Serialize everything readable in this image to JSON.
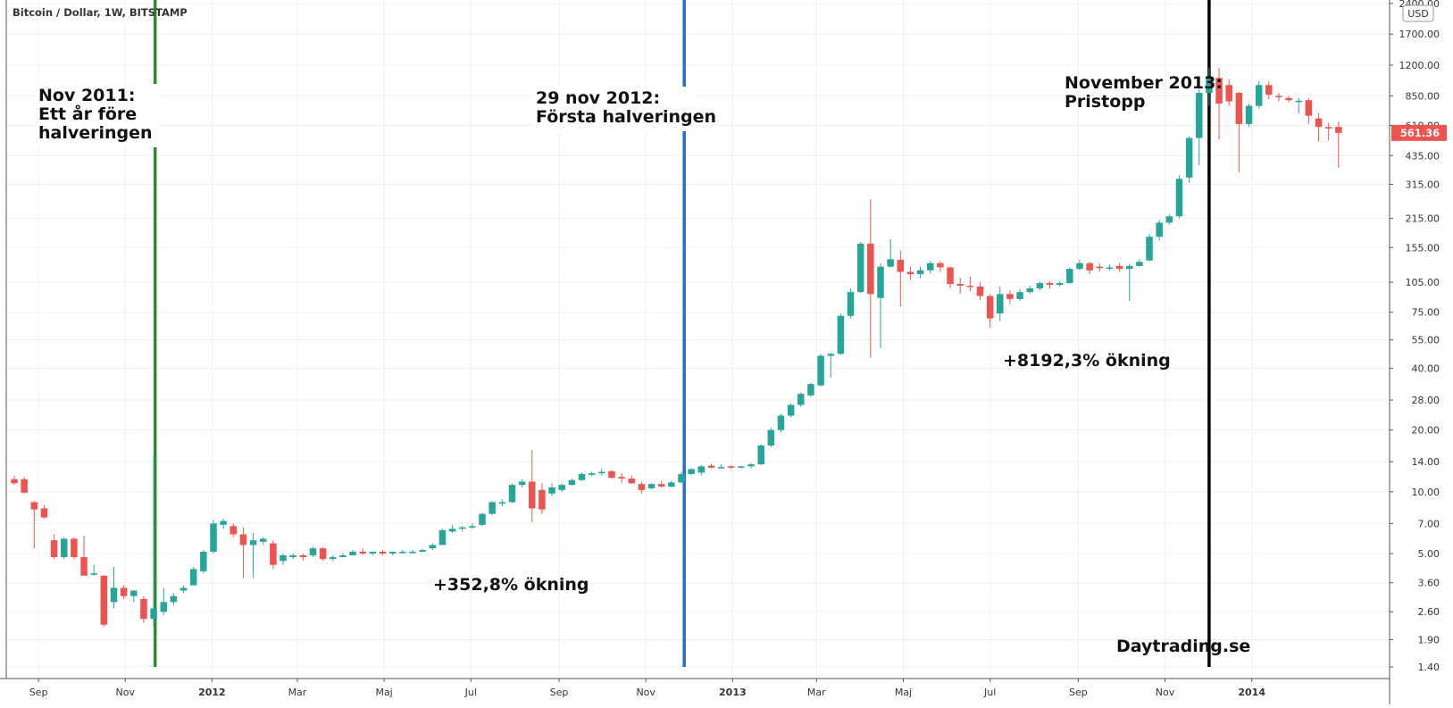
{
  "chart_data": {
    "type": "candlestick",
    "title": "Bitcoin / Dollar, 1W, BITSTAMP",
    "currency": "USD",
    "y_scale": "log",
    "ylim": [
      1.35,
      2400
    ],
    "xlim": [
      "2011-08-15",
      "2014-03-20"
    ],
    "grid": true,
    "y_ticks": [
      "2400.00",
      "1700.00",
      "1200.00",
      "850.00",
      "610.00",
      "435.00",
      "315.00",
      "215.00",
      "155.00",
      "105.00",
      "75.00",
      "55.00",
      "40.00",
      "28.00",
      "20.00",
      "14.00",
      "10.00",
      "7.00",
      "5.00",
      "3.60",
      "2.60",
      "1.90",
      "1.40"
    ],
    "x_ticks": [
      {
        "label": "Sep",
        "date": "2011-09-01",
        "bold": false
      },
      {
        "label": "Nov",
        "date": "2011-11-01",
        "bold": false
      },
      {
        "label": "2012",
        "date": "2012-01-01",
        "bold": true
      },
      {
        "label": "Mar",
        "date": "2012-03-01",
        "bold": false
      },
      {
        "label": "Maj",
        "date": "2012-05-01",
        "bold": false
      },
      {
        "label": "Jul",
        "date": "2012-07-01",
        "bold": false
      },
      {
        "label": "Sep",
        "date": "2012-09-01",
        "bold": false
      },
      {
        "label": "Nov",
        "date": "2012-11-01",
        "bold": false
      },
      {
        "label": "2013",
        "date": "2013-01-01",
        "bold": true
      },
      {
        "label": "Mar",
        "date": "2013-03-01",
        "bold": false
      },
      {
        "label": "Maj",
        "date": "2013-05-01",
        "bold": false
      },
      {
        "label": "Jul",
        "date": "2013-07-01",
        "bold": false
      },
      {
        "label": "Sep",
        "date": "2013-09-01",
        "bold": false
      },
      {
        "label": "Nov",
        "date": "2013-11-01",
        "bold": false
      },
      {
        "label": "2014",
        "date": "2014-01-01",
        "bold": true
      }
    ],
    "last_price": "561.36",
    "colors": {
      "up": "#26a69a",
      "down": "#ef5350",
      "grid": "#eef0f4",
      "price_label": "#ef5350"
    },
    "vertical_lines": [
      {
        "date": "2011-11-22",
        "color": "#2e8b2e"
      },
      {
        "date": "2012-11-28",
        "color": "#1e6fd0"
      },
      {
        "date": "2013-12-02",
        "color": "#000000"
      }
    ],
    "annotations": [
      {
        "lines": [
          "Nov 2011:",
          "Ett år före",
          "halveringen"
        ]
      },
      {
        "lines": [
          "29 nov 2012:",
          "Första halveringen"
        ]
      },
      {
        "lines": [
          "November 2013:",
          "Pristopp"
        ]
      },
      {
        "lines": [
          "+352,8% ökning"
        ]
      },
      {
        "lines": [
          "+8192,3% ökning"
        ]
      },
      {
        "lines": [
          "Daytrading.se"
        ]
      }
    ],
    "candles": [
      {
        "date": "2011-08-15",
        "o": 11.5,
        "h": 12.0,
        "l": 10.8,
        "c": 11.0
      },
      {
        "date": "2011-08-22",
        "o": 11.5,
        "h": 11.8,
        "l": 9.8,
        "c": 9.9
      },
      {
        "date": "2011-08-29",
        "o": 8.9,
        "h": 9.0,
        "l": 5.3,
        "c": 8.2
      },
      {
        "date": "2011-09-05",
        "o": 8.3,
        "h": 8.6,
        "l": 7.4,
        "c": 7.5
      },
      {
        "date": "2011-09-12",
        "o": 5.8,
        "h": 6.2,
        "l": 4.7,
        "c": 4.8
      },
      {
        "date": "2011-09-19",
        "o": 4.8,
        "h": 6.0,
        "l": 4.7,
        "c": 5.9
      },
      {
        "date": "2011-09-26",
        "o": 5.9,
        "h": 6.0,
        "l": 4.7,
        "c": 4.8
      },
      {
        "date": "2011-10-03",
        "o": 4.8,
        "h": 6.1,
        "l": 3.9,
        "c": 3.9
      },
      {
        "date": "2011-10-10",
        "o": 4.0,
        "h": 4.4,
        "l": 3.9,
        "c": 4.0
      },
      {
        "date": "2011-10-17",
        "o": 3.9,
        "h": 3.9,
        "l": 2.2,
        "c": 2.25
      },
      {
        "date": "2011-10-24",
        "o": 2.9,
        "h": 4.3,
        "l": 2.7,
        "c": 3.4
      },
      {
        "date": "2011-10-31",
        "o": 3.4,
        "h": 3.5,
        "l": 3.0,
        "c": 3.1
      },
      {
        "date": "2011-11-07",
        "o": 3.1,
        "h": 3.3,
        "l": 2.9,
        "c": 3.3
      },
      {
        "date": "2011-11-14",
        "o": 3.0,
        "h": 3.1,
        "l": 2.3,
        "c": 2.4
      },
      {
        "date": "2011-11-21",
        "o": 2.4,
        "h": 15.0,
        "l": 2.2,
        "c": 2.7
      },
      {
        "date": "2011-11-28",
        "o": 2.6,
        "h": 3.4,
        "l": 2.5,
        "c": 2.9
      },
      {
        "date": "2011-12-05",
        "o": 2.9,
        "h": 3.2,
        "l": 2.8,
        "c": 3.1
      },
      {
        "date": "2011-12-12",
        "o": 3.3,
        "h": 3.5,
        "l": 3.2,
        "c": 3.4
      },
      {
        "date": "2011-12-19",
        "o": 3.5,
        "h": 4.3,
        "l": 3.5,
        "c": 4.2
      },
      {
        "date": "2011-12-26",
        "o": 4.1,
        "h": 5.2,
        "l": 4.0,
        "c": 5.1
      },
      {
        "date": "2012-01-02",
        "o": 5.1,
        "h": 7.3,
        "l": 5.0,
        "c": 7.0
      },
      {
        "date": "2012-01-09",
        "o": 6.9,
        "h": 7.4,
        "l": 6.6,
        "c": 7.2
      },
      {
        "date": "2012-01-16",
        "o": 6.8,
        "h": 7.0,
        "l": 6.0,
        "c": 6.2
      },
      {
        "date": "2012-01-23",
        "o": 6.2,
        "h": 6.7,
        "l": 3.8,
        "c": 5.5
      },
      {
        "date": "2012-01-30",
        "o": 5.5,
        "h": 6.3,
        "l": 3.8,
        "c": 5.8
      },
      {
        "date": "2012-02-06",
        "o": 5.7,
        "h": 6.0,
        "l": 5.5,
        "c": 5.9
      },
      {
        "date": "2012-02-13",
        "o": 5.6,
        "h": 5.8,
        "l": 4.2,
        "c": 4.4
      },
      {
        "date": "2012-02-20",
        "o": 4.6,
        "h": 5.0,
        "l": 4.4,
        "c": 4.9
      },
      {
        "date": "2012-02-27",
        "o": 4.8,
        "h": 5.0,
        "l": 4.7,
        "c": 4.9
      },
      {
        "date": "2012-03-05",
        "o": 4.9,
        "h": 5.0,
        "l": 4.6,
        "c": 4.8
      },
      {
        "date": "2012-03-12",
        "o": 4.9,
        "h": 5.4,
        "l": 4.8,
        "c": 5.3
      },
      {
        "date": "2012-03-19",
        "o": 5.3,
        "h": 5.4,
        "l": 4.6,
        "c": 4.7
      },
      {
        "date": "2012-03-26",
        "o": 4.7,
        "h": 4.9,
        "l": 4.6,
        "c": 4.8
      },
      {
        "date": "2012-04-02",
        "o": 4.8,
        "h": 5.0,
        "l": 4.8,
        "c": 4.9
      },
      {
        "date": "2012-04-09",
        "o": 4.9,
        "h": 5.2,
        "l": 4.9,
        "c": 5.1
      },
      {
        "date": "2012-04-16",
        "o": 5.1,
        "h": 5.3,
        "l": 4.9,
        "c": 5.0
      },
      {
        "date": "2012-04-23",
        "o": 5.0,
        "h": 5.1,
        "l": 4.9,
        "c": 5.1
      },
      {
        "date": "2012-04-30",
        "o": 5.1,
        "h": 5.2,
        "l": 4.9,
        "c": 5.0
      },
      {
        "date": "2012-05-07",
        "o": 5.0,
        "h": 5.1,
        "l": 4.9,
        "c": 5.1
      },
      {
        "date": "2012-05-14",
        "o": 5.1,
        "h": 5.2,
        "l": 5.0,
        "c": 5.1
      },
      {
        "date": "2012-05-21",
        "o": 5.1,
        "h": 5.2,
        "l": 5.0,
        "c": 5.1
      },
      {
        "date": "2012-05-28",
        "o": 5.1,
        "h": 5.3,
        "l": 5.1,
        "c": 5.2
      },
      {
        "date": "2012-06-04",
        "o": 5.3,
        "h": 5.6,
        "l": 5.2,
        "c": 5.5
      },
      {
        "date": "2012-06-11",
        "o": 5.5,
        "h": 6.6,
        "l": 5.5,
        "c": 6.5
      },
      {
        "date": "2012-06-18",
        "o": 6.4,
        "h": 6.9,
        "l": 6.3,
        "c": 6.6
      },
      {
        "date": "2012-06-25",
        "o": 6.6,
        "h": 6.8,
        "l": 6.4,
        "c": 6.7
      },
      {
        "date": "2012-07-02",
        "o": 6.7,
        "h": 7.0,
        "l": 6.6,
        "c": 6.8
      },
      {
        "date": "2012-07-09",
        "o": 6.9,
        "h": 7.9,
        "l": 6.8,
        "c": 7.8
      },
      {
        "date": "2012-07-16",
        "o": 7.8,
        "h": 9.0,
        "l": 7.7,
        "c": 8.9
      },
      {
        "date": "2012-07-23",
        "o": 8.9,
        "h": 9.2,
        "l": 8.5,
        "c": 8.9
      },
      {
        "date": "2012-07-30",
        "o": 8.9,
        "h": 11.0,
        "l": 8.8,
        "c": 10.8
      },
      {
        "date": "2012-08-06",
        "o": 10.8,
        "h": 11.5,
        "l": 10.5,
        "c": 11.2
      },
      {
        "date": "2012-08-13",
        "o": 11.2,
        "h": 16.0,
        "l": 7.1,
        "c": 8.3
      },
      {
        "date": "2012-08-20",
        "o": 10.2,
        "h": 11.0,
        "l": 7.8,
        "c": 8.2
      },
      {
        "date": "2012-08-27",
        "o": 9.8,
        "h": 11.0,
        "l": 9.5,
        "c": 10.5
      },
      {
        "date": "2012-09-03",
        "o": 10.2,
        "h": 11.0,
        "l": 10.0,
        "c": 10.8
      },
      {
        "date": "2012-09-10",
        "o": 10.8,
        "h": 11.6,
        "l": 10.7,
        "c": 11.4
      },
      {
        "date": "2012-09-17",
        "o": 11.4,
        "h": 12.4,
        "l": 11.3,
        "c": 12.2
      },
      {
        "date": "2012-09-24",
        "o": 12.1,
        "h": 12.5,
        "l": 11.9,
        "c": 12.3
      },
      {
        "date": "2012-10-01",
        "o": 12.3,
        "h": 13.0,
        "l": 12.0,
        "c": 12.5
      },
      {
        "date": "2012-10-08",
        "o": 12.6,
        "h": 12.7,
        "l": 11.6,
        "c": 11.7
      },
      {
        "date": "2012-10-15",
        "o": 11.8,
        "h": 12.3,
        "l": 11.0,
        "c": 11.6
      },
      {
        "date": "2012-10-22",
        "o": 11.6,
        "h": 12.0,
        "l": 10.9,
        "c": 11.0
      },
      {
        "date": "2012-10-29",
        "o": 10.9,
        "h": 11.2,
        "l": 9.8,
        "c": 10.2
      },
      {
        "date": "2012-11-05",
        "o": 10.4,
        "h": 11.0,
        "l": 10.3,
        "c": 10.9
      },
      {
        "date": "2012-11-12",
        "o": 10.9,
        "h": 11.3,
        "l": 10.5,
        "c": 10.6
      },
      {
        "date": "2012-11-19",
        "o": 10.6,
        "h": 11.3,
        "l": 10.5,
        "c": 11.1
      },
      {
        "date": "2012-11-26",
        "o": 11.1,
        "h": 12.5,
        "l": 11.0,
        "c": 12.2
      },
      {
        "date": "2012-12-03",
        "o": 12.2,
        "h": 13.0,
        "l": 12.1,
        "c": 12.9
      },
      {
        "date": "2012-12-10",
        "o": 12.4,
        "h": 13.5,
        "l": 12.0,
        "c": 13.3
      },
      {
        "date": "2012-12-17",
        "o": 13.4,
        "h": 13.7,
        "l": 13.0,
        "c": 13.1
      },
      {
        "date": "2012-12-24",
        "o": 13.2,
        "h": 13.6,
        "l": 13.0,
        "c": 13.2
      },
      {
        "date": "2012-12-31",
        "o": 13.3,
        "h": 13.5,
        "l": 12.9,
        "c": 13.1
      },
      {
        "date": "2013-01-07",
        "o": 13.2,
        "h": 13.4,
        "l": 13.0,
        "c": 13.3
      },
      {
        "date": "2013-01-14",
        "o": 13.3,
        "h": 13.8,
        "l": 13.0,
        "c": 13.6
      },
      {
        "date": "2013-01-21",
        "o": 13.6,
        "h": 17.0,
        "l": 13.5,
        "c": 16.8
      },
      {
        "date": "2013-01-28",
        "o": 16.8,
        "h": 20.5,
        "l": 16.5,
        "c": 20.0
      },
      {
        "date": "2013-02-04",
        "o": 20.0,
        "h": 24.0,
        "l": 19.5,
        "c": 23.5
      },
      {
        "date": "2013-02-11",
        "o": 23.5,
        "h": 27.0,
        "l": 23.0,
        "c": 26.5
      },
      {
        "date": "2013-02-18",
        "o": 26.5,
        "h": 30.5,
        "l": 26.0,
        "c": 30.0
      },
      {
        "date": "2013-02-25",
        "o": 29.5,
        "h": 34.0,
        "l": 29.0,
        "c": 33.5
      },
      {
        "date": "2013-03-04",
        "o": 33.0,
        "h": 47.0,
        "l": 32.5,
        "c": 46.0
      },
      {
        "date": "2013-03-11",
        "o": 46.0,
        "h": 47.5,
        "l": 36.0,
        "c": 47.0
      },
      {
        "date": "2013-03-18",
        "o": 47.0,
        "h": 74.0,
        "l": 46.5,
        "c": 72.0
      },
      {
        "date": "2013-03-25",
        "o": 72.0,
        "h": 98.0,
        "l": 70.0,
        "c": 94.0
      },
      {
        "date": "2013-04-01",
        "o": 94.0,
        "h": 165.0,
        "l": 93.0,
        "c": 162.0
      },
      {
        "date": "2013-04-08",
        "o": 162.0,
        "h": 266.0,
        "l": 45.0,
        "c": 92.0
      },
      {
        "date": "2013-04-15",
        "o": 88.0,
        "h": 130.0,
        "l": 50.0,
        "c": 125.0
      },
      {
        "date": "2013-04-22",
        "o": 125.0,
        "h": 170.0,
        "l": 124.0,
        "c": 136.0
      },
      {
        "date": "2013-04-29",
        "o": 135.0,
        "h": 150.0,
        "l": 80.0,
        "c": 118.0
      },
      {
        "date": "2013-05-06",
        "o": 118.0,
        "h": 125.0,
        "l": 108.0,
        "c": 115.0
      },
      {
        "date": "2013-05-13",
        "o": 115.0,
        "h": 125.0,
        "l": 110.0,
        "c": 120.0
      },
      {
        "date": "2013-05-20",
        "o": 120.0,
        "h": 133.0,
        "l": 116.0,
        "c": 130.0
      },
      {
        "date": "2013-05-27",
        "o": 130.0,
        "h": 133.0,
        "l": 118.0,
        "c": 124.0
      },
      {
        "date": "2013-06-03",
        "o": 124.0,
        "h": 125.0,
        "l": 98.0,
        "c": 103.0
      },
      {
        "date": "2013-06-10",
        "o": 103.0,
        "h": 110.0,
        "l": 92.0,
        "c": 101.0
      },
      {
        "date": "2013-06-17",
        "o": 101.0,
        "h": 112.0,
        "l": 95.0,
        "c": 100.0
      },
      {
        "date": "2013-06-24",
        "o": 100.0,
        "h": 105.0,
        "l": 86.0,
        "c": 90.0
      },
      {
        "date": "2013-07-01",
        "o": 90.0,
        "h": 92.0,
        "l": 63.0,
        "c": 70.0
      },
      {
        "date": "2013-07-08",
        "o": 74.0,
        "h": 100.0,
        "l": 68.0,
        "c": 92.0
      },
      {
        "date": "2013-07-15",
        "o": 92.0,
        "h": 96.0,
        "l": 82.0,
        "c": 87.0
      },
      {
        "date": "2013-07-22",
        "o": 87.0,
        "h": 97.0,
        "l": 85.0,
        "c": 94.0
      },
      {
        "date": "2013-07-29",
        "o": 94.0,
        "h": 101.0,
        "l": 92.0,
        "c": 98.0
      },
      {
        "date": "2013-08-05",
        "o": 98.0,
        "h": 106.0,
        "l": 96.0,
        "c": 104.0
      },
      {
        "date": "2013-08-12",
        "o": 104.0,
        "h": 106.0,
        "l": 98.0,
        "c": 102.0
      },
      {
        "date": "2013-08-19",
        "o": 102.0,
        "h": 106.0,
        "l": 100.0,
        "c": 104.0
      },
      {
        "date": "2013-08-26",
        "o": 104.0,
        "h": 124.0,
        "l": 103.0,
        "c": 122.0
      },
      {
        "date": "2013-09-02",
        "o": 122.0,
        "h": 135.0,
        "l": 120.0,
        "c": 130.0
      },
      {
        "date": "2013-09-09",
        "o": 130.0,
        "h": 132.0,
        "l": 115.0,
        "c": 120.0
      },
      {
        "date": "2013-09-16",
        "o": 125.0,
        "h": 130.0,
        "l": 118.0,
        "c": 123.0
      },
      {
        "date": "2013-09-23",
        "o": 123.0,
        "h": 128.0,
        "l": 120.0,
        "c": 124.0
      },
      {
        "date": "2013-09-30",
        "o": 126.0,
        "h": 130.0,
        "l": 118.0,
        "c": 122.0
      },
      {
        "date": "2013-10-07",
        "o": 122.0,
        "h": 129.0,
        "l": 85.0,
        "c": 126.0
      },
      {
        "date": "2013-10-14",
        "o": 126.0,
        "h": 136.0,
        "l": 125.0,
        "c": 132.0
      },
      {
        "date": "2013-10-21",
        "o": 134.0,
        "h": 180.0,
        "l": 133.0,
        "c": 175.0
      },
      {
        "date": "2013-10-28",
        "o": 175.0,
        "h": 212.0,
        "l": 168.0,
        "c": 205.0
      },
      {
        "date": "2013-11-04",
        "o": 205.0,
        "h": 225.0,
        "l": 200.0,
        "c": 220.0
      },
      {
        "date": "2013-11-11",
        "o": 220.0,
        "h": 350.0,
        "l": 215.0,
        "c": 335.0
      },
      {
        "date": "2013-11-18",
        "o": 340.0,
        "h": 540.0,
        "l": 320.0,
        "c": 530.0
      },
      {
        "date": "2013-11-25",
        "o": 530.0,
        "h": 920.0,
        "l": 390.0,
        "c": 880.0
      },
      {
        "date": "2013-12-02",
        "o": 880.0,
        "h": 1170.0,
        "l": 760.0,
        "c": 1030.0
      },
      {
        "date": "2013-12-09",
        "o": 1040.0,
        "h": 1160.0,
        "l": 520.0,
        "c": 780.0
      },
      {
        "date": "2013-12-16",
        "o": 960.0,
        "h": 1020.0,
        "l": 760.0,
        "c": 800.0
      },
      {
        "date": "2013-12-23",
        "o": 880.0,
        "h": 890.0,
        "l": 360.0,
        "c": 620.0
      },
      {
        "date": "2013-12-30",
        "o": 620.0,
        "h": 780.0,
        "l": 600.0,
        "c": 760.0
      },
      {
        "date": "2014-01-06",
        "o": 760.0,
        "h": 1000.0,
        "l": 740.0,
        "c": 960.0
      },
      {
        "date": "2014-01-13",
        "o": 960.0,
        "h": 1000.0,
        "l": 820.0,
        "c": 860.0
      },
      {
        "date": "2014-01-20",
        "o": 850.0,
        "h": 880.0,
        "l": 800.0,
        "c": 840.0
      },
      {
        "date": "2014-01-27",
        "o": 830.0,
        "h": 850.0,
        "l": 790.0,
        "c": 810.0
      },
      {
        "date": "2014-02-03",
        "o": 800.0,
        "h": 830.0,
        "l": 700.0,
        "c": 805.0
      },
      {
        "date": "2014-02-10",
        "o": 810.0,
        "h": 830.0,
        "l": 620.0,
        "c": 680.0
      },
      {
        "date": "2014-02-17",
        "o": 660.0,
        "h": 700.0,
        "l": 510.0,
        "c": 600.0
      },
      {
        "date": "2014-02-24",
        "o": 600.0,
        "h": 630.0,
        "l": 515.0,
        "c": 590.0
      },
      {
        "date": "2014-03-03",
        "o": 600.0,
        "h": 640.0,
        "l": 380.0,
        "c": 561.36
      }
    ]
  }
}
